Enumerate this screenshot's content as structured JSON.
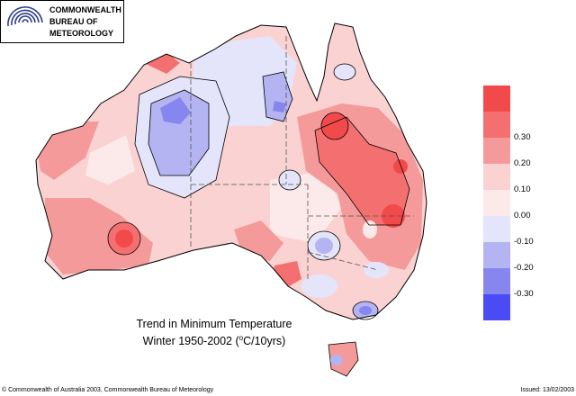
{
  "logo": {
    "line1": "COMMONWEALTH",
    "line2": "BUREAU OF",
    "line3": "METEOROLOGY",
    "icon": "bom-swirl-logo"
  },
  "title": {
    "line1": "Trend in Minimum Temperature",
    "line2_prefix": "Winter  1950-2002 (",
    "line2_sup": "o",
    "line2_suffix": "C/10yrs)"
  },
  "footer": {
    "copyright": "© Commonwealth of Australia 2003, Commonwealth Bureau of Meteorology",
    "issued": "Issued: 13/02/2003"
  },
  "legend": {
    "bins": [
      {
        "label": "",
        "color": "#f24a4a"
      },
      {
        "label": "0.30",
        "color": "#f47070"
      },
      {
        "label": "0.20",
        "color": "#f59a9a"
      },
      {
        "label": "0.10",
        "color": "#fbd2d2"
      },
      {
        "label": "0.00",
        "color": "#fceaea"
      },
      {
        "label": "-0.10",
        "color": "#e4e4fa"
      },
      {
        "label": "-0.20",
        "color": "#b4b4f2"
      },
      {
        "label": "-0.30",
        "color": "#8686ee"
      },
      {
        "label": "",
        "color": "#4b4bf5"
      }
    ]
  },
  "colors": {
    "outline": "#000000",
    "state_border": "#555555"
  }
}
